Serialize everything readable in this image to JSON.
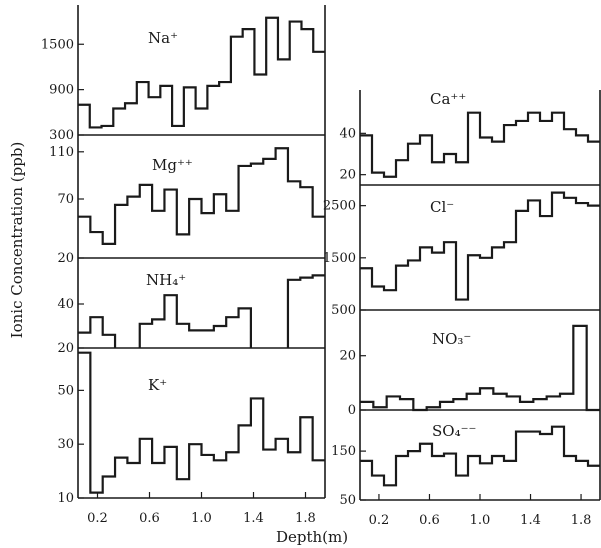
{
  "chart_data": [
    {
      "type": "line",
      "step": true,
      "title": "Na⁺",
      "panel": "left-1",
      "ylim": [
        300,
        1900
      ],
      "yticks": [
        300,
        900,
        1500
      ],
      "ytick_labels": [
        "300",
        "900",
        "1500"
      ],
      "values": [
        700,
        400,
        420,
        650,
        720,
        1000,
        800,
        950,
        420,
        930,
        650,
        950,
        1000,
        1600,
        1700,
        1100,
        1850,
        1300,
        1800,
        1700,
        1400
      ]
    },
    {
      "type": "line",
      "step": true,
      "title": "Mg⁺⁺",
      "panel": "left-2",
      "ylim": [
        20,
        120
      ],
      "yticks": [
        20,
        70,
        110
      ],
      "ytick_labels": [
        "20",
        "70",
        "110"
      ],
      "values": [
        55,
        42,
        32,
        65,
        72,
        82,
        60,
        78,
        40,
        70,
        58,
        74,
        60,
        98,
        100,
        104,
        113,
        85,
        80,
        55
      ]
    },
    {
      "type": "line",
      "step": true,
      "title": "NH₄⁺",
      "panel": "left-3",
      "ylim": [
        20,
        60
      ],
      "yticks": [
        20,
        40
      ],
      "ytick_labels": [
        "20",
        "40"
      ],
      "values": [
        27,
        34,
        26,
        null,
        null,
        31,
        33,
        44,
        31,
        28,
        28,
        30,
        34,
        38,
        null,
        null,
        null,
        51,
        52,
        53
      ],
      "breaks": [
        {
          "x": 0.3,
          "drop_to": 20
        },
        {
          "x": 1.45,
          "drop_to": 20
        },
        {
          "x": 1.65,
          "rise_from": 20
        }
      ]
    },
    {
      "type": "line",
      "step": true,
      "title": "K⁺",
      "panel": "left-4",
      "ylim": [
        10,
        65
      ],
      "yticks": [
        10,
        30,
        50
      ],
      "ytick_labels": [
        "10",
        "30",
        "50"
      ],
      "values": [
        64,
        12,
        18,
        25,
        23,
        32,
        23,
        29,
        17,
        30,
        26,
        24,
        27,
        37,
        47,
        28,
        32,
        27,
        40,
        24
      ]
    },
    {
      "type": "line",
      "step": true,
      "title": "Ca⁺⁺",
      "panel": "right-1",
      "ylim": [
        15,
        60
      ],
      "yticks": [
        20,
        40
      ],
      "ytick_labels": [
        "20",
        "40"
      ],
      "values": [
        39,
        21,
        19,
        27,
        35,
        39,
        26,
        30,
        26,
        50,
        38,
        36,
        44,
        46,
        50,
        46,
        50,
        42,
        39,
        36
      ]
    },
    {
      "type": "line",
      "step": true,
      "title": "Cl⁻",
      "panel": "right-2",
      "ylim": [
        500,
        2800
      ],
      "yticks": [
        500,
        1500,
        2500
      ],
      "ytick_labels": [
        "500",
        "1500",
        "2500"
      ],
      "values": [
        1300,
        950,
        880,
        1350,
        1450,
        1700,
        1600,
        1800,
        700,
        1550,
        1500,
        1700,
        1800,
        2400,
        2600,
        2300,
        2750,
        2650,
        2550,
        2500
      ]
    },
    {
      "type": "line",
      "step": true,
      "title": "NO₃⁻",
      "panel": "right-3",
      "ylim": [
        0,
        35
      ],
      "yticks": [
        0,
        20
      ],
      "ytick_labels": [
        "0",
        "20"
      ],
      "values": [
        3,
        1,
        5,
        4,
        0,
        1,
        3,
        4,
        6,
        8,
        6,
        5,
        3,
        4,
        5,
        6,
        31,
        0
      ]
    },
    {
      "type": "line",
      "step": true,
      "title": "SO₄⁻⁻",
      "panel": "right-4",
      "ylim": [
        50,
        230
      ],
      "yticks": [
        50,
        150
      ],
      "ytick_labels": [
        "50",
        "150"
      ],
      "values": [
        130,
        100,
        80,
        140,
        150,
        165,
        140,
        145,
        100,
        140,
        125,
        140,
        130,
        190,
        190,
        185,
        200,
        140,
        130,
        120
      ]
    },
    {
      "shared": true,
      "xlabel": "Depth(m)",
      "ylabel": "Ionic Concentration (ppb)",
      "xlim": [
        0.05,
        1.95
      ],
      "xticks": [
        0.2,
        0.6,
        1.0,
        1.4,
        1.8
      ],
      "xtick_labels": [
        "0.2",
        "0.6",
        "1.0",
        "1.4",
        "1.8"
      ]
    }
  ],
  "labels": {
    "ylabel": "Ionic Concentration (ppb)",
    "xlabel": "Depth(m)"
  }
}
